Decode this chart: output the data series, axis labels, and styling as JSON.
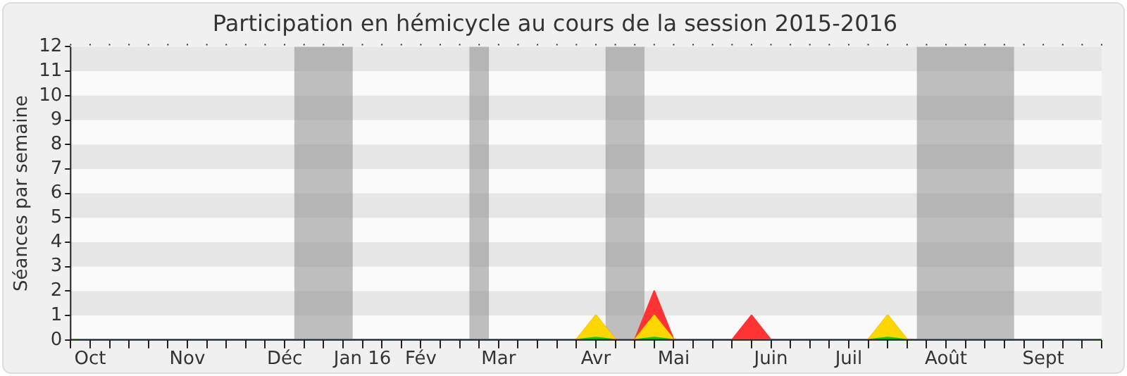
{
  "chart_data": {
    "type": "area",
    "title": "Participation en hémicycle au cours de la session 2015-2016",
    "ylabel": "Séances par semaine",
    "categories": [
      null,
      "Oct",
      null,
      null,
      null,
      null,
      "Nov",
      null,
      null,
      null,
      null,
      "Déc",
      null,
      null,
      null,
      "Jan 16",
      null,
      null,
      "Fév",
      null,
      null,
      null,
      "Mar",
      null,
      null,
      null,
      null,
      "Avr",
      null,
      null,
      null,
      "Mai",
      null,
      null,
      null,
      null,
      "Juin",
      null,
      null,
      null,
      "Juil",
      null,
      null,
      null,
      null,
      "Août",
      null,
      null,
      null,
      null,
      "Sept",
      null,
      null,
      null
    ],
    "series": [
      {
        "color": "#ff3333",
        "values": [
          0,
          0,
          0,
          0,
          0,
          0,
          0,
          0,
          0,
          0,
          0,
          0,
          0,
          0,
          0,
          0,
          0,
          0,
          0,
          0,
          0,
          0,
          0,
          0,
          0,
          0,
          0,
          1,
          0,
          0,
          2,
          0,
          0,
          0,
          0,
          1,
          0,
          0,
          0,
          0,
          0,
          0,
          1,
          0,
          0,
          0,
          0,
          0,
          0,
          0,
          0,
          0,
          0,
          0
        ]
      },
      {
        "color": "#ffd700",
        "values": [
          0,
          0,
          0,
          0,
          0,
          0,
          0,
          0,
          0,
          0,
          0,
          0,
          0,
          0,
          0,
          0,
          0,
          0,
          0,
          0,
          0,
          0,
          0,
          0,
          0,
          0,
          0,
          1,
          0,
          0,
          1,
          0,
          0,
          0,
          0,
          0,
          0,
          0,
          0,
          0,
          0,
          0,
          1,
          0,
          0,
          0,
          0,
          0,
          0,
          0,
          0,
          0,
          0,
          0
        ]
      },
      {
        "color": "#00cc00",
        "values": [
          0,
          0,
          0,
          0,
          0,
          0,
          0,
          0,
          0,
          0,
          0,
          0,
          0,
          0,
          0,
          0,
          0,
          0,
          0,
          0,
          0,
          0,
          0,
          0,
          0,
          0,
          0,
          0.1,
          0,
          0,
          0.1,
          0,
          0,
          0,
          0,
          0,
          0,
          0,
          0,
          0,
          0,
          0,
          0.1,
          0,
          0,
          0,
          0,
          0,
          0,
          0,
          0,
          0,
          0,
          0
        ]
      }
    ],
    "ylim": [
      0,
      12
    ],
    "yticks": [
      0,
      1,
      2,
      3,
      4,
      5,
      6,
      7,
      8,
      9,
      10,
      11,
      12
    ]
  }
}
